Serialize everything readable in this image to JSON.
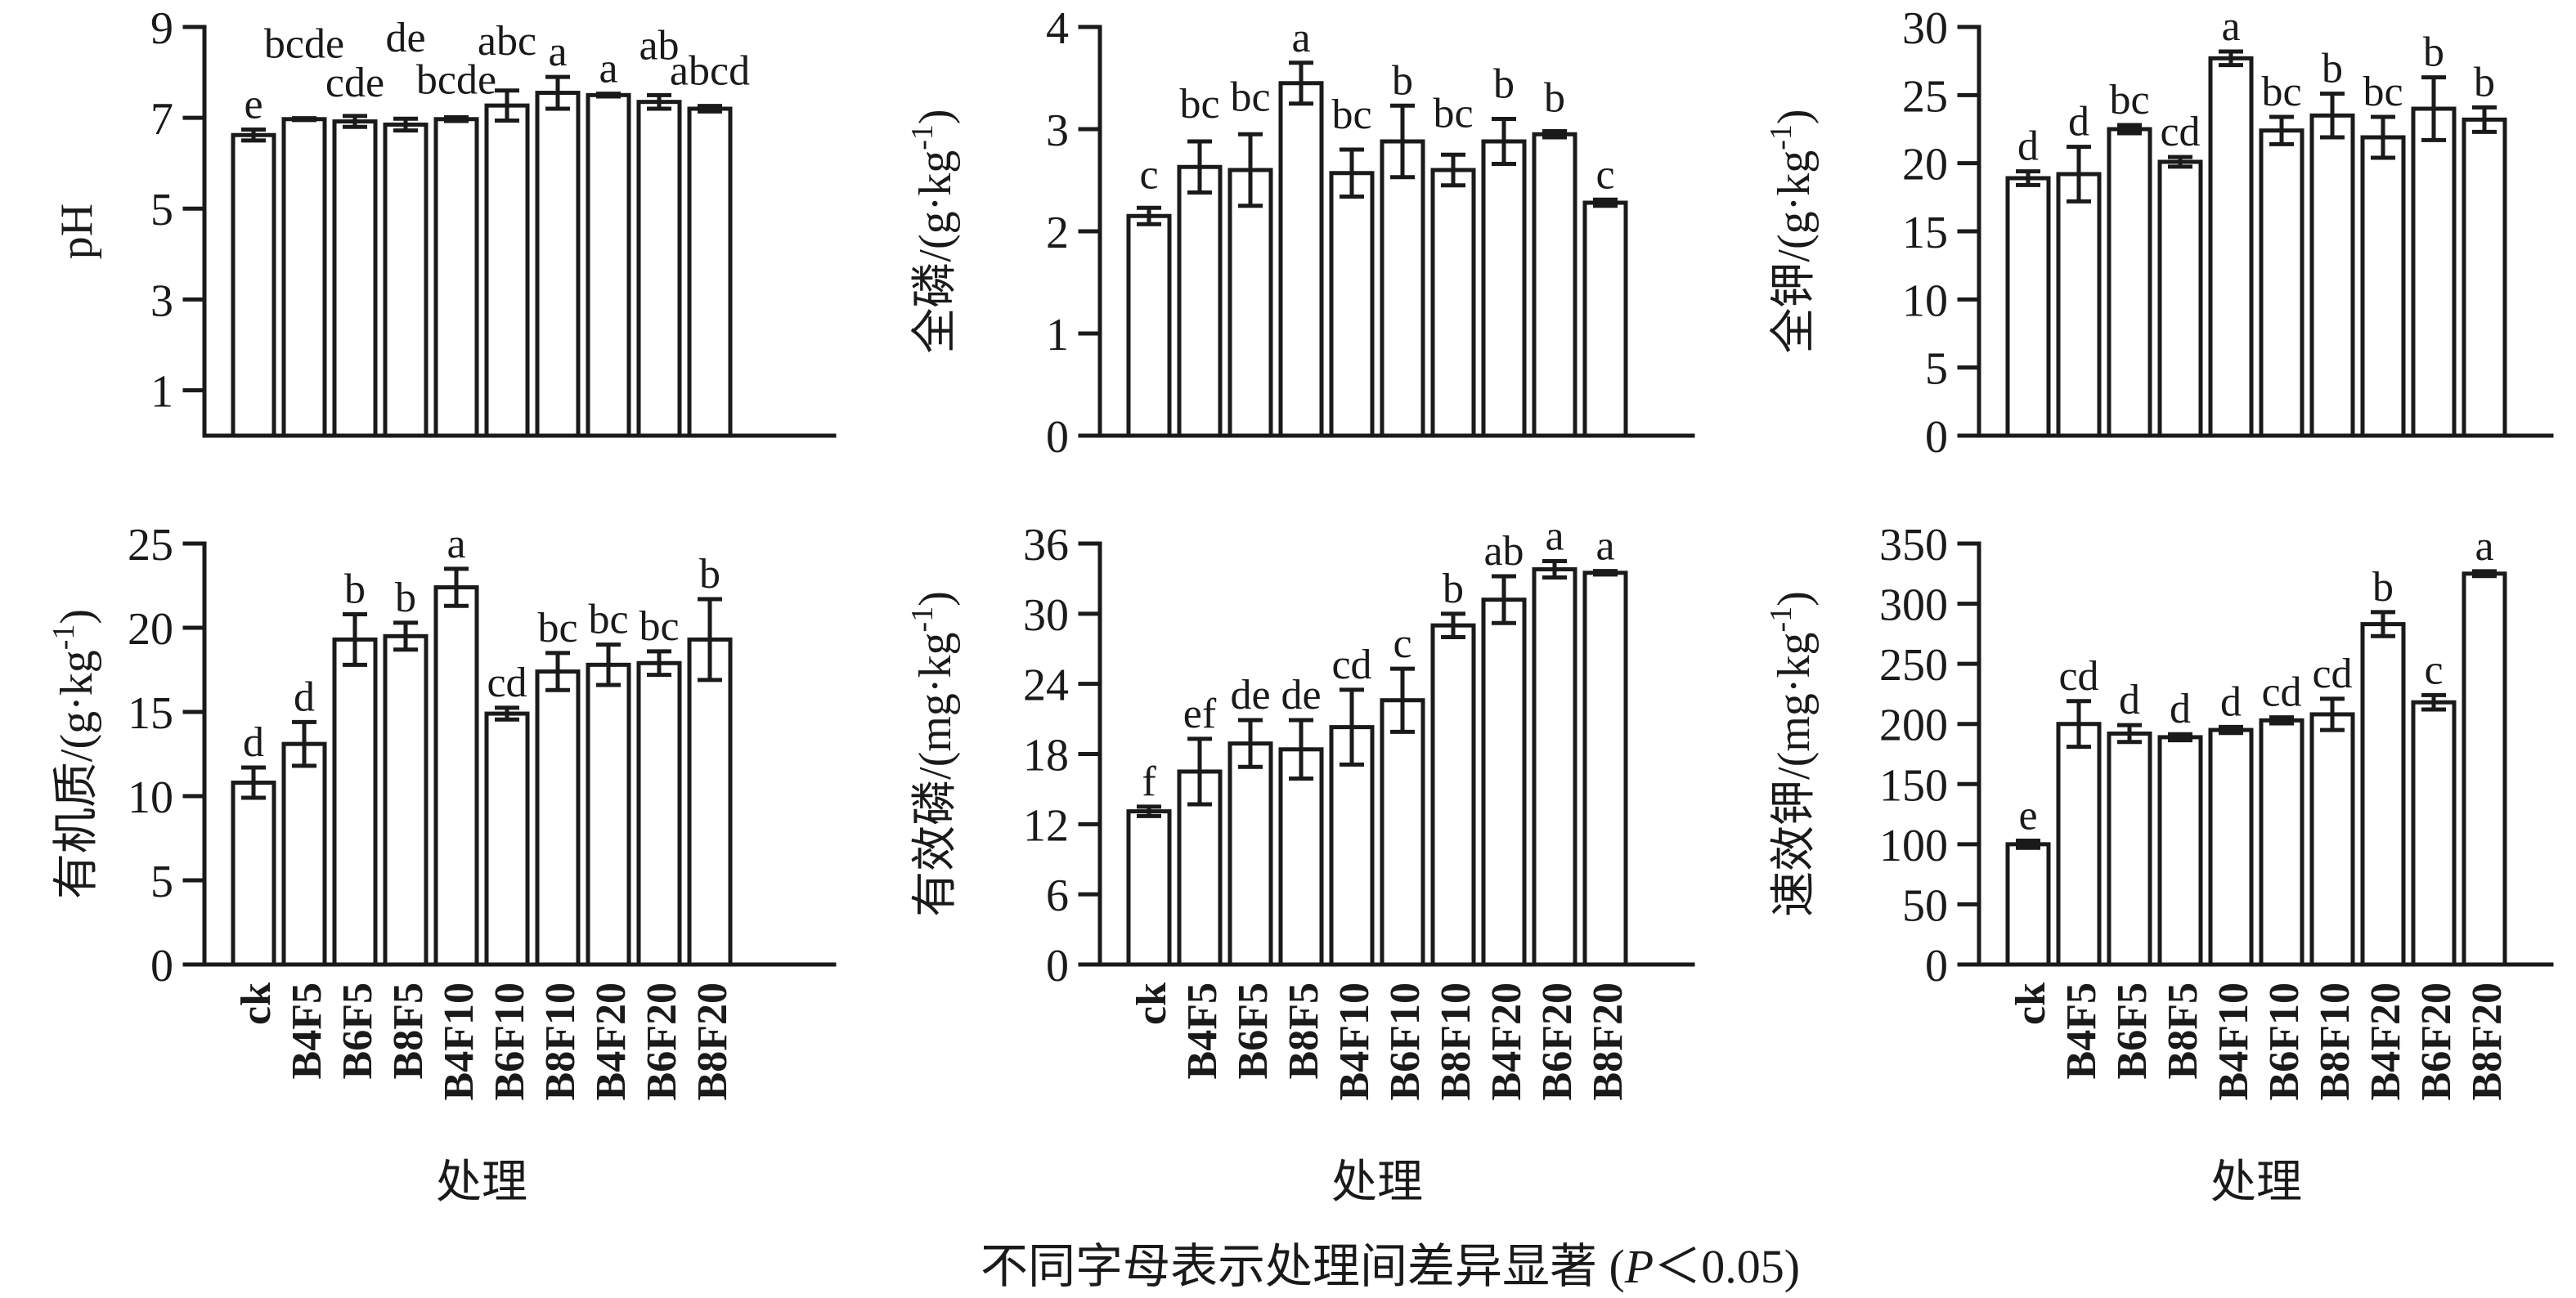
{
  "figure": {
    "xlabel": "处理",
    "categories": [
      "ck",
      "B4F5",
      "B6F5",
      "B8F5",
      "B4F10",
      "B6F10",
      "B8F10",
      "B4F20",
      "B6F20",
      "B8F20"
    ],
    "caption": {
      "text_before_p": "不同字母表示处理间差异显著 (",
      "p": "P",
      "text_after_p": "＜0.05)"
    },
    "ink_color": "#1a1a1a",
    "background_color": "#ffffff"
  },
  "chart_data": [
    {
      "id": "ph",
      "type": "bar",
      "row": 0,
      "col": 0,
      "title": "pH",
      "ylabel": "pH",
      "xlabel": "处理",
      "categories": [
        "ck",
        "B4F5",
        "B6F5",
        "B8F5",
        "B4F10",
        "B6F10",
        "B8F10",
        "B4F20",
        "B6F20",
        "B8F20"
      ],
      "values": [
        6.62,
        6.97,
        6.92,
        6.85,
        6.97,
        7.27,
        7.55,
        7.5,
        7.35,
        7.2
      ],
      "errors": [
        0.12,
        0.02,
        0.12,
        0.13,
        0.04,
        0.33,
        0.35,
        0.03,
        0.15,
        0.06
      ],
      "sig_letters": [
        "e",
        "bcde",
        "cde",
        "de",
        "bcde",
        "abc",
        "a",
        "a",
        "ab",
        "abcd"
      ],
      "letter_raise_px": [
        0,
        60,
        10,
        68,
        15,
        30,
        0,
        0,
        30,
        12
      ],
      "ylim": [
        0,
        9
      ],
      "yticks": [
        1,
        3,
        5,
        7,
        9
      ],
      "grid": false
    },
    {
      "id": "total-phosphorus",
      "type": "bar",
      "row": 0,
      "col": 1,
      "title": "全磷",
      "ylabel": "全磷/(g·kg⁻¹)",
      "xlabel": "处理",
      "categories": [
        "ck",
        "B4F5",
        "B6F5",
        "B8F5",
        "B4F10",
        "B6F10",
        "B8F10",
        "B4F20",
        "B6F20",
        "B8F20"
      ],
      "values": [
        2.15,
        2.63,
        2.6,
        3.45,
        2.57,
        2.88,
        2.6,
        2.88,
        2.95,
        2.28
      ],
      "errors": [
        0.08,
        0.25,
        0.35,
        0.2,
        0.23,
        0.35,
        0.15,
        0.22,
        0.03,
        0.03
      ],
      "sig_letters": [
        "c",
        "bc",
        "bc",
        "a",
        "bc",
        "b",
        "bc",
        "b",
        "b",
        "c"
      ],
      "letter_raise_px": [
        10,
        15,
        15,
        0,
        12,
        0,
        20,
        12,
        10,
        0
      ],
      "ylim": [
        0,
        4
      ],
      "yticks": [
        0,
        1,
        2,
        3,
        4
      ],
      "grid": false
    },
    {
      "id": "total-potassium",
      "type": "bar",
      "row": 0,
      "col": 2,
      "title": "全钾",
      "ylabel": "全钾/(g·kg⁻¹)",
      "xlabel": "处理",
      "categories": [
        "ck",
        "B4F5",
        "B6F5",
        "B8F5",
        "B4F10",
        "B6F10",
        "B8F10",
        "B4F20",
        "B6F20",
        "B8F20"
      ],
      "values": [
        18.9,
        19.2,
        22.5,
        20.1,
        27.7,
        22.4,
        23.5,
        21.9,
        24.0,
        23.2
      ],
      "errors": [
        0.5,
        2.0,
        0.3,
        0.35,
        0.5,
        1.0,
        1.6,
        1.5,
        2.3,
        0.9
      ],
      "sig_letters": [
        "d",
        "d",
        "bc",
        "cd",
        "a",
        "bc",
        "b",
        "bc",
        "b",
        "b"
      ],
      "letter_raise_px": [
        0,
        0,
        0,
        0,
        0,
        0,
        0,
        0,
        0,
        0
      ],
      "ylim": [
        0,
        30
      ],
      "yticks": [
        0,
        5,
        10,
        15,
        20,
        25,
        30
      ],
      "grid": false
    },
    {
      "id": "organic-matter",
      "type": "bar",
      "row": 1,
      "col": 0,
      "title": "有机质",
      "ylabel": "有机质/(g·kg⁻¹)",
      "xlabel": "处理",
      "categories": [
        "ck",
        "B4F5",
        "B6F5",
        "B8F5",
        "B4F10",
        "B6F10",
        "B8F10",
        "B4F20",
        "B6F20",
        "B8F20"
      ],
      "values": [
        10.8,
        13.1,
        19.3,
        19.5,
        22.4,
        14.9,
        17.4,
        17.8,
        17.9,
        19.3
      ],
      "errors": [
        0.9,
        1.3,
        1.5,
        0.8,
        1.1,
        0.35,
        1.1,
        1.2,
        0.7,
        2.4
      ],
      "sig_letters": [
        "d",
        "d",
        "b",
        "b",
        "a",
        "cd",
        "bc",
        "bc",
        "bc",
        "b"
      ],
      "letter_raise_px": [
        0,
        0,
        0,
        0,
        0,
        0,
        0,
        0,
        0,
        0
      ],
      "ylim": [
        0,
        25
      ],
      "yticks": [
        0,
        5,
        10,
        15,
        20,
        25
      ],
      "grid": false
    },
    {
      "id": "available-phosphorus",
      "type": "bar",
      "row": 1,
      "col": 1,
      "title": "有效磷",
      "ylabel": "有效磷/(mg·kg⁻¹)",
      "xlabel": "处理",
      "categories": [
        "ck",
        "B4F5",
        "B6F5",
        "B8F5",
        "B4F10",
        "B6F10",
        "B8F10",
        "B4F20",
        "B6F20",
        "B8F20"
      ],
      "values": [
        13.1,
        16.5,
        18.9,
        18.4,
        20.3,
        22.6,
        29.0,
        31.2,
        33.8,
        33.5
      ],
      "errors": [
        0.4,
        2.8,
        2.0,
        2.5,
        3.2,
        2.7,
        1.0,
        2.0,
        0.7,
        0.15
      ],
      "sig_letters": [
        "f",
        "ef",
        "de",
        "de",
        "cd",
        "c",
        "b",
        "ab",
        "a",
        "a"
      ],
      "letter_raise_px": [
        0,
        0,
        0,
        0,
        0,
        0,
        0,
        0,
        0,
        0
      ],
      "ylim": [
        0,
        36
      ],
      "yticks": [
        0,
        6,
        12,
        18,
        24,
        30,
        36
      ],
      "grid": false
    },
    {
      "id": "available-potassium",
      "type": "bar",
      "row": 1,
      "col": 2,
      "title": "速效钾",
      "ylabel": "速效钾/(mg·kg⁻¹)",
      "xlabel": "处理",
      "categories": [
        "ck",
        "B4F5",
        "B6F5",
        "B8F5",
        "B4F10",
        "B6F10",
        "B8F10",
        "B4F20",
        "B6F20",
        "B8F20"
      ],
      "values": [
        100,
        200,
        192,
        189,
        195,
        203,
        208,
        283,
        218,
        325
      ],
      "errors": [
        3,
        19,
        7,
        2.5,
        2.5,
        2.5,
        13,
        10,
        6,
        2
      ],
      "sig_letters": [
        "e",
        "cd",
        "d",
        "d",
        "d",
        "cd",
        "cd",
        "b",
        "c",
        "a"
      ],
      "letter_raise_px": [
        0,
        0,
        0,
        0,
        0,
        0,
        0,
        0,
        0,
        0
      ],
      "ylim": [
        0,
        350
      ],
      "yticks": [
        0,
        50,
        100,
        150,
        200,
        250,
        300,
        350
      ],
      "grid": false
    }
  ]
}
